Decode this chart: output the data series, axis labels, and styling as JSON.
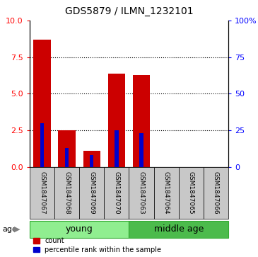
{
  "title": "GDS5879 / ILMN_1232101",
  "samples": [
    "GSM1847067",
    "GSM1847068",
    "GSM1847069",
    "GSM1847070",
    "GSM1847063",
    "GSM1847064",
    "GSM1847065",
    "GSM1847066"
  ],
  "counts": [
    8.7,
    2.5,
    1.1,
    6.4,
    6.3,
    0.0,
    0.0,
    0.0
  ],
  "percentiles": [
    30,
    13,
    8,
    25,
    23,
    0,
    0,
    0
  ],
  "groups": [
    {
      "label": "young",
      "start": 0,
      "end": 3,
      "color": "#90EE90"
    },
    {
      "label": "middle age",
      "start": 4,
      "end": 7,
      "color": "#4CBB4C"
    }
  ],
  "bar_color": "#CC0000",
  "percentile_color": "#0000CC",
  "left_ylim": [
    0,
    10
  ],
  "right_ylim": [
    0,
    100
  ],
  "left_yticks": [
    0,
    2.5,
    5,
    7.5,
    10
  ],
  "right_yticks": [
    0,
    25,
    50,
    75,
    100
  ],
  "grid_values": [
    2.5,
    5.0,
    7.5
  ],
  "bar_width": 0.7,
  "blue_bar_width": 0.15,
  "sample_bg_color": "#C8C8C8",
  "age_label": "age",
  "legend_count_label": "count",
  "legend_percentile_label": "percentile rank within the sample",
  "title_fontsize": 10,
  "tick_fontsize": 8,
  "sample_fontsize": 6.5,
  "group_fontsize": 9
}
